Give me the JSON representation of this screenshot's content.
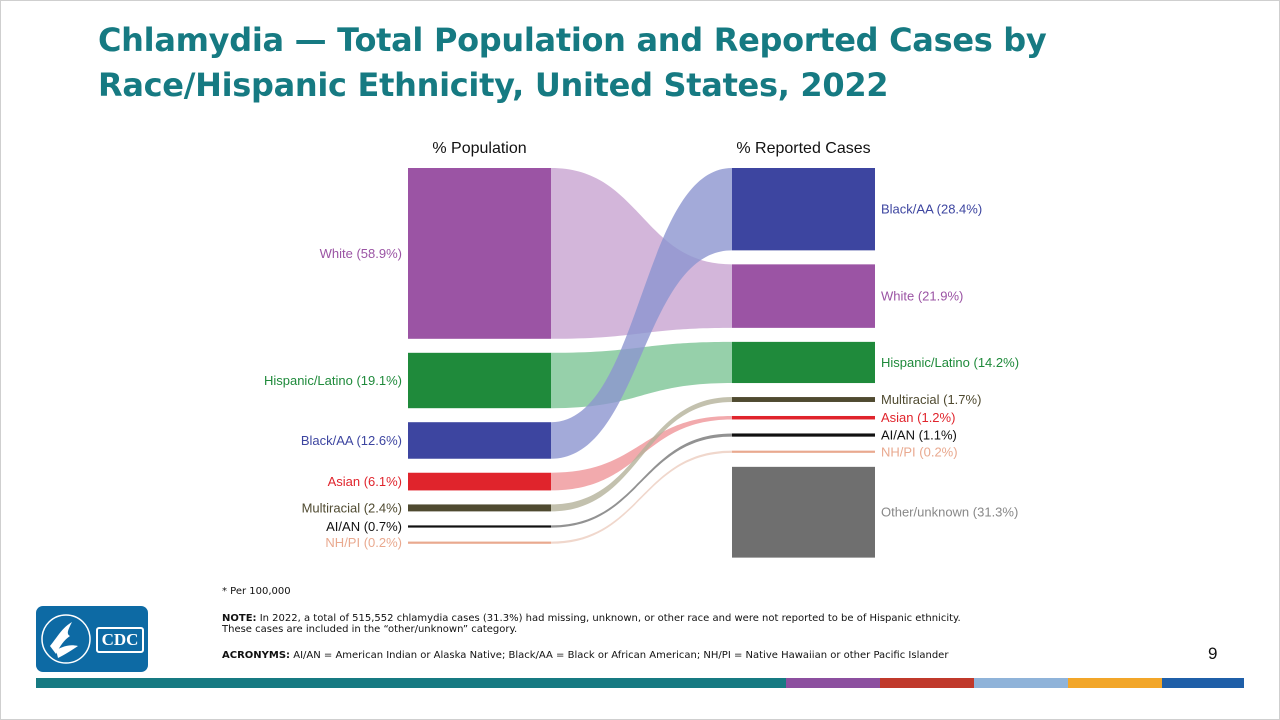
{
  "slide": {
    "title_line1": "Chlamydia — Total Population and Reported Cases by",
    "title_line2": "Race/Hispanic Ethnicity, United States, 2022",
    "per_note": "* Per 100,000",
    "note_label": "NOTE:",
    "note_line1": "In 2022, a total of 515,552 chlamydia cases (31.3%) had missing, unknown, or other race and were not reported to be of Hispanic ethnicity.",
    "note_line2": "These cases are included in the “other/unknown” category.",
    "acronyms_label": "ACRONYMS:",
    "acronyms_text": "AI/AN = American Indian or Alaska Native; Black/AA = Black or African American; NH/PI = Native Hawaiian or other Pacific Islander",
    "page_number": "9",
    "logo_text": "CDC",
    "footer_colors": [
      "#167a82",
      "#8c4f9f",
      "#c0392b",
      "#8fb3d9",
      "#f2a629",
      "#1f5fa8"
    ]
  },
  "chart_data": {
    "type": "sankey",
    "left_header": "% Population",
    "right_header": "% Reported Cases",
    "left": [
      {
        "name": "White",
        "label": "White (58.9%)",
        "value": 58.9,
        "color": "#9b54a4",
        "link_color": "#c8a4d1"
      },
      {
        "name": "Hispanic/Latino",
        "label": "Hispanic/Latino (19.1%)",
        "value": 19.1,
        "color": "#1f8a3b",
        "link_color": "#7cc495"
      },
      {
        "name": "Black/AA",
        "label": "Black/AA (12.6%)",
        "value": 12.6,
        "color": "#3d45a0",
        "link_color": "#8c95cf"
      },
      {
        "name": "Asian",
        "label": "Asian (6.1%)",
        "value": 6.1,
        "color": "#e0242c",
        "link_color": "#ef9599"
      },
      {
        "name": "Multiracial",
        "label": "Multiracial (2.4%)",
        "value": 2.4,
        "color": "#4f4a30",
        "link_color": "#b4b29a"
      },
      {
        "name": "AI/AN",
        "label": "AI/AN (0.7%)",
        "value": 0.7,
        "color": "#111111",
        "link_color": "#777777"
      },
      {
        "name": "NH/PI",
        "label": "NH/PI (0.2%)",
        "value": 0.2,
        "color": "#e9a98f",
        "link_color": "#eccdbf"
      }
    ],
    "right": [
      {
        "name": "Black/AA",
        "label": "Black/AA (28.4%)",
        "value": 28.4,
        "color": "#3d45a0"
      },
      {
        "name": "White",
        "label": "White (21.9%)",
        "value": 21.9,
        "color": "#9b54a4"
      },
      {
        "name": "Hispanic/Latino",
        "label": "Hispanic/Latino (14.2%)",
        "value": 14.2,
        "color": "#1f8a3b"
      },
      {
        "name": "Multiracial",
        "label": "Multiracial (1.7%)",
        "value": 1.7,
        "color": "#4f4a30"
      },
      {
        "name": "Asian",
        "label": "Asian (1.2%)",
        "value": 1.2,
        "color": "#e0242c"
      },
      {
        "name": "AI/AN",
        "label": "AI/AN (1.1%)",
        "value": 1.1,
        "color": "#111111"
      },
      {
        "name": "NH/PI",
        "label": "NH/PI (0.2%)",
        "value": 0.2,
        "color": "#e9a98f"
      },
      {
        "name": "Other/unknown",
        "label": "Other/unknown (31.3%)",
        "value": 31.3,
        "color": "#6f6f6f",
        "label_color": "#888888"
      }
    ]
  }
}
